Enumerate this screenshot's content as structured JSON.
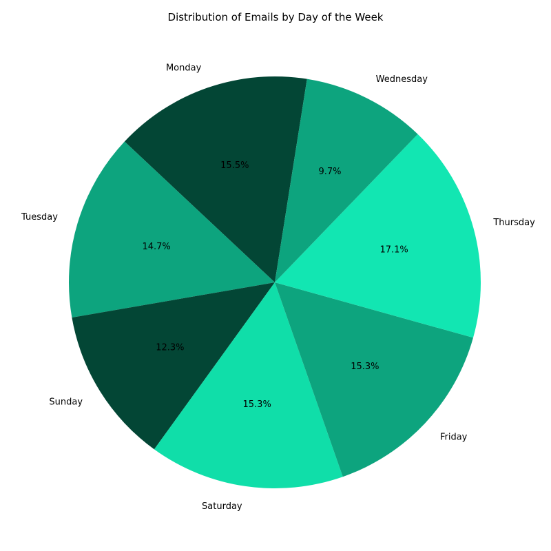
{
  "chart_data": {
    "type": "pie",
    "title": "Distribution of Emails by Day of the Week",
    "slices": [
      {
        "label": "Monday",
        "value": 15.5,
        "pct_label": "15.5%",
        "color": "#034635"
      },
      {
        "label": "Tuesday",
        "value": 14.7,
        "pct_label": "14.7%",
        "color": "#0da47e"
      },
      {
        "label": "Sunday",
        "value": 12.3,
        "pct_label": "12.3%",
        "color": "#034635"
      },
      {
        "label": "Saturday",
        "value": 15.3,
        "pct_label": "15.3%",
        "color": "#10dea9"
      },
      {
        "label": "Friday",
        "value": 15.3,
        "pct_label": "15.3%",
        "color": "#0da47e"
      },
      {
        "label": "Thursday",
        "value": 17.1,
        "pct_label": "17.1%",
        "color": "#12e6b2"
      },
      {
        "label": "Wednesday",
        "value": 9.7,
        "pct_label": "9.7%",
        "color": "#0da47e"
      }
    ],
    "start_angle_deg": 81,
    "direction": "counterclockwise",
    "legend": "none"
  }
}
